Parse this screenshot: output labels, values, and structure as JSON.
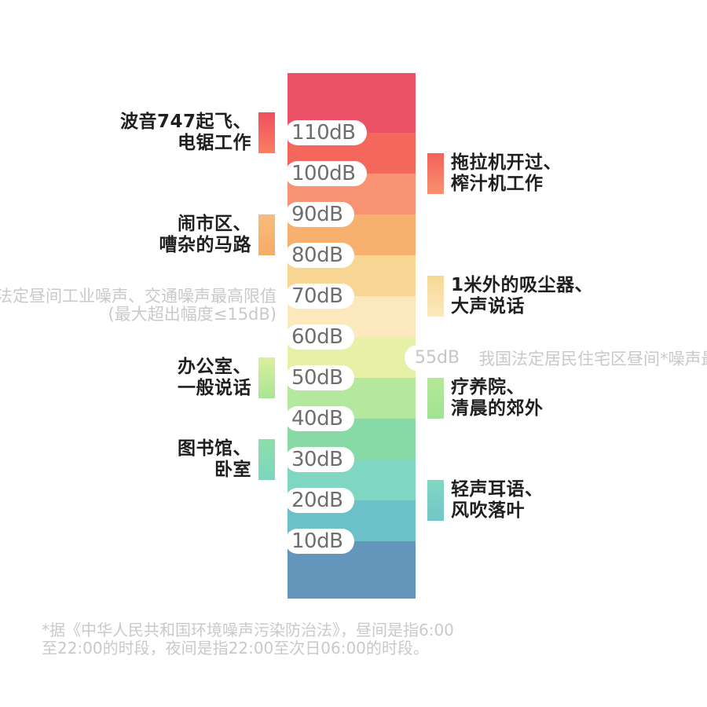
{
  "chart_data": {
    "type": "bar",
    "subtype": "vertical-decibel-color-scale",
    "orientation": "vertical",
    "unit": "dB",
    "ylim": [
      0,
      120
    ],
    "levels": [
      "110dB",
      "100dB",
      "90dB",
      "80dB",
      "70dB",
      "60dB",
      "50dB",
      "40dB",
      "30dB",
      "20dB",
      "10dB"
    ],
    "band_colors": [
      "#EC5168",
      "#F4675C",
      "#F79372",
      "#F7B06E",
      "#F8D795",
      "#FBE9BD",
      "#E6F0A6",
      "#B4E89F",
      "#87DAA5",
      "#7FD6C3",
      "#6CC0C8",
      "#6496BB"
    ],
    "pill_text_color": "#6E6E6E",
    "examples_left": [
      {
        "db": 110,
        "lines": [
          "波音747起飞、",
          "电锯工作"
        ],
        "tab_colors": [
          "#EF4F60",
          "#F97E62"
        ]
      },
      {
        "db": 85,
        "lines": [
          "闹市区、",
          "嘈杂的马路"
        ],
        "tab_colors": [
          "#F9BC7C",
          "#F5AB66"
        ]
      },
      {
        "db": 50,
        "lines": [
          "办公室、",
          "一般说话"
        ],
        "tab_colors": [
          "#DCEF9D",
          "#A8E595"
        ]
      },
      {
        "db": 30,
        "lines": [
          "图书馆、",
          "卧室"
        ],
        "tab_colors": [
          "#8EDFA9",
          "#7CD5C0"
        ]
      }
    ],
    "examples_right": [
      {
        "db": 100,
        "lines": [
          "拖拉机开过、",
          "榨汁机工作"
        ],
        "tab_colors": [
          "#F4625B",
          "#F8916F"
        ]
      },
      {
        "db": 70,
        "lines": [
          "1米外的吸尘器、",
          "大声说话"
        ],
        "tab_colors": [
          "#F8D795",
          "#FBE9BD"
        ]
      },
      {
        "db": 45,
        "lines": [
          "疗养院、",
          "清晨的郊外"
        ],
        "tab_colors": [
          "#B5E999",
          "#A0E394"
        ]
      },
      {
        "db": 20,
        "lines": [
          "轻声耳语、",
          "风吹落叶"
        ],
        "tab_colors": [
          "#80D7C2",
          "#72C6C8"
        ]
      }
    ],
    "limit_left": {
      "db": 70,
      "lines": [
        "我国法定昼间工业噪声、交通噪声最高限值",
        "(最大超出幅度≤15dB)"
      ],
      "text_color": "#C9C9C9"
    },
    "limit_right": {
      "db": 55,
      "badge": "55dB",
      "text": "我国法定居民住宅区昼间*噪声最高限值",
      "text_color": "#C9C9C9"
    },
    "footnote_lines": [
      "*据《中华人民共和国环境噪声污染防治法》，昼间是指6:00",
      "至22:00的时段，夜间是指22:00至次日06:00的时段。"
    ]
  }
}
